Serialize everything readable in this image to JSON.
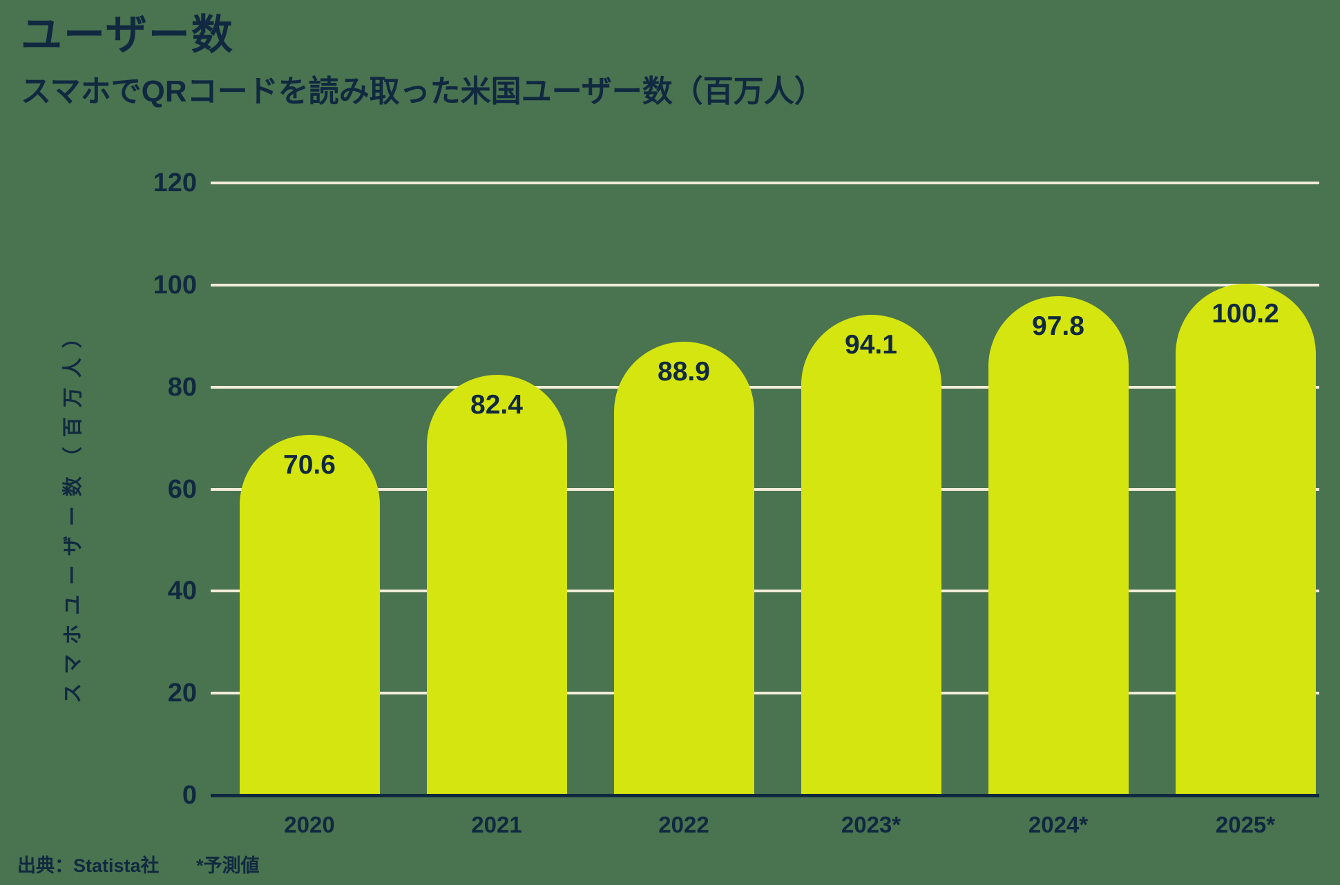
{
  "chart_data": {
    "type": "bar",
    "title": "ユーザー数",
    "subtitle": "スマホでQRコードを読み取った米国ユーザー数（百万人）",
    "ylabel": "スマホユーザー数（百万人）",
    "categories": [
      "2020",
      "2021",
      "2022",
      "2023*",
      "2024*",
      "2025*"
    ],
    "values": [
      70.6,
      82.4,
      88.9,
      94.1,
      97.8,
      100.2
    ],
    "ylim": [
      0,
      120
    ],
    "yticks": [
      0,
      20,
      40,
      60,
      80,
      100,
      120
    ],
    "grid": true,
    "legend_position": "none",
    "source": "出典：Statista社",
    "footnote": "*予測値",
    "colors": {
      "background": "#4a7350",
      "bar": "#d5e50f",
      "gridline": "#f2ecd9",
      "text": "#102940"
    }
  }
}
